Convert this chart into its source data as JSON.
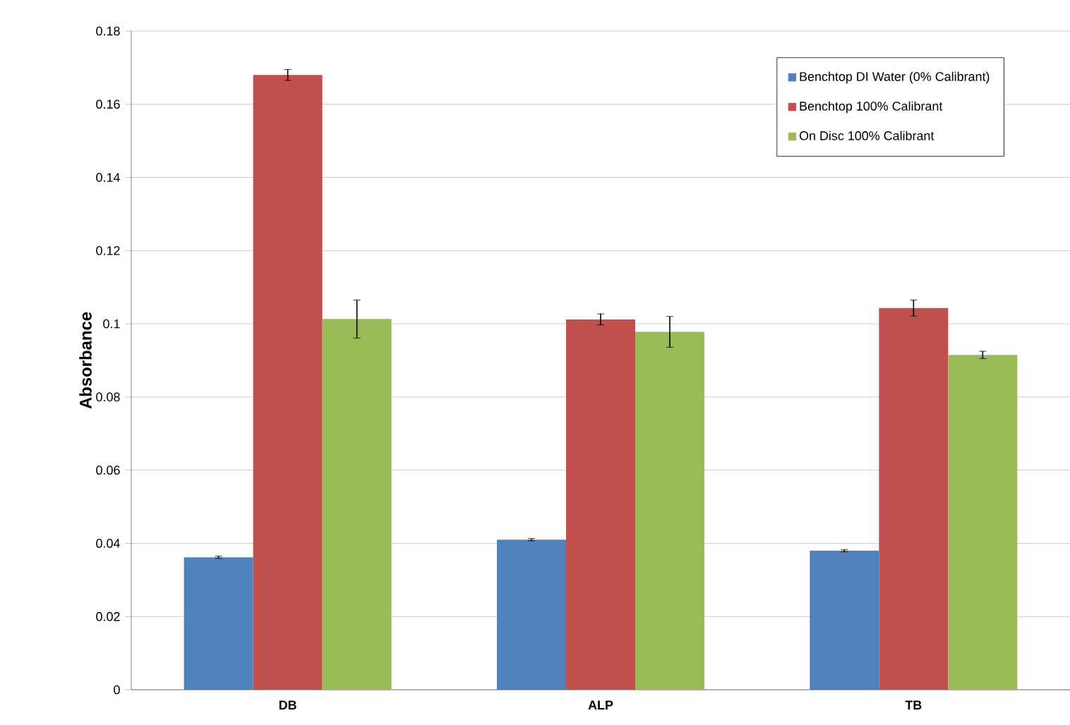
{
  "chart_data": {
    "type": "bar",
    "ylabel": "Absorbance",
    "categories": [
      "DB",
      "ALP",
      "TB"
    ],
    "series": [
      {
        "name": "Benchtop DI Water (0% Calibrant)",
        "color": "#4f81bd",
        "values": [
          0.0362,
          0.041,
          0.038
        ],
        "errors": [
          0.0003,
          0.0003,
          0.0003
        ]
      },
      {
        "name": "Benchtop 100% Calibrant",
        "color": "#c0504d",
        "values": [
          0.168,
          0.1012,
          0.1043
        ],
        "errors": [
          0.0015,
          0.0015,
          0.0022
        ]
      },
      {
        "name": "On Disc 100% Calibrant",
        "color": "#9bbb59",
        "values": [
          0.1013,
          0.0978,
          0.0915
        ],
        "errors": [
          0.0052,
          0.0042,
          0.001
        ]
      }
    ],
    "ylim": [
      0,
      0.18
    ],
    "yticks": [
      0,
      0.02,
      0.04,
      0.06,
      0.08,
      0.1,
      0.12,
      0.14,
      0.16,
      0.18
    ],
    "grid": "y",
    "legend": "top right"
  }
}
